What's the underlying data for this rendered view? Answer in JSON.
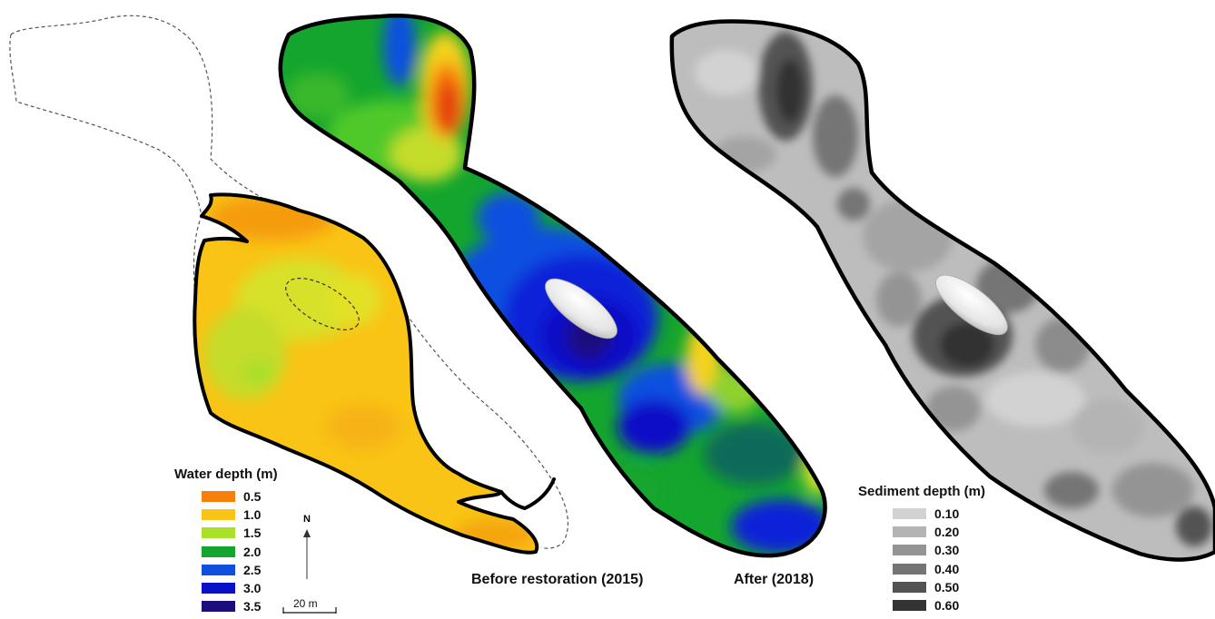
{
  "captions": {
    "before": "Before restoration (2015)",
    "after": "After (2018)"
  },
  "water_legend": {
    "title": "Water depth (m)",
    "items": [
      {
        "label": "0.5",
        "color": "#f77f0c"
      },
      {
        "label": "1.0",
        "color": "#f9c415"
      },
      {
        "label": "1.5",
        "color": "#a8e02a"
      },
      {
        "label": "2.0",
        "color": "#14a52e"
      },
      {
        "label": "2.5",
        "color": "#0f4fe0"
      },
      {
        "label": "3.0",
        "color": "#0a0fc8"
      },
      {
        "label": "3.5",
        "color": "#1c0d7e"
      }
    ]
  },
  "sediment_legend": {
    "title": "Sediment depth (m)",
    "items": [
      {
        "label": "0.10",
        "color": "#d2d2d2"
      },
      {
        "label": "0.20",
        "color": "#b4b4b4"
      },
      {
        "label": "0.30",
        "color": "#949494"
      },
      {
        "label": "0.40",
        "color": "#747474"
      },
      {
        "label": "0.50",
        "color": "#525252"
      },
      {
        "label": "0.60",
        "color": "#333333"
      }
    ]
  },
  "north_arrow": {
    "label": "N"
  },
  "scale_bar": {
    "label": "20 m"
  }
}
